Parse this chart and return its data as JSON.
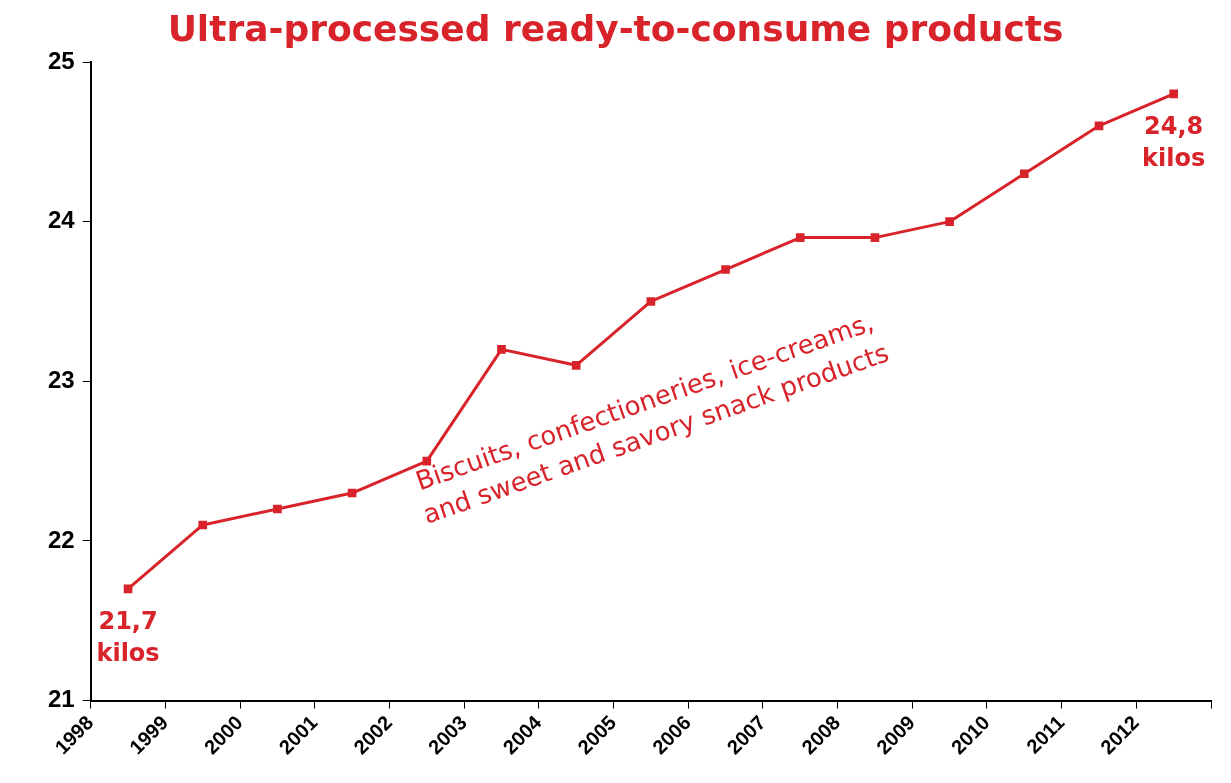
{
  "chart_data": {
    "type": "line",
    "title": "Ultra-processed ready-to-consume products",
    "x": [
      1998.5,
      1999.5,
      2000.5,
      2001.5,
      2002.5,
      2003.5,
      2004.5,
      2005.5,
      2006.5,
      2007.5,
      2008.5,
      2009.5,
      2010.5,
      2011.5,
      2012.5
    ],
    "series": [
      {
        "color": "#d9232a",
        "values": [
          21.7,
          22.1,
          22.2,
          22.3,
          22.5,
          23.2,
          23.1,
          23.5,
          23.7,
          23.9,
          23.9,
          24.0,
          24.3,
          24.6,
          24.8
        ]
      }
    ],
    "xlim": [
      1998,
      2013
    ],
    "xticks": [
      1998,
      1999,
      2000,
      2001,
      2002,
      2003,
      2004,
      2005,
      2006,
      2007,
      2008,
      2009,
      2010,
      2011,
      2012,
      {
        "value": 2013,
        "label": null
      }
    ],
    "ylim": [
      21,
      25
    ],
    "yticks": [
      21,
      22,
      23,
      24,
      25
    ],
    "marker": "square",
    "line_style": "solid",
    "legend": false,
    "annotations": [
      {
        "text": "21,7\nkilos",
        "x": 1998.5,
        "y": 21.7
      },
      {
        "text": "24,8\nkilos",
        "x": 2012.5,
        "y": 24.8
      },
      "Biscuits, confectioneries, ice-creams,\nand sweet and savory snack products"
    ]
  }
}
